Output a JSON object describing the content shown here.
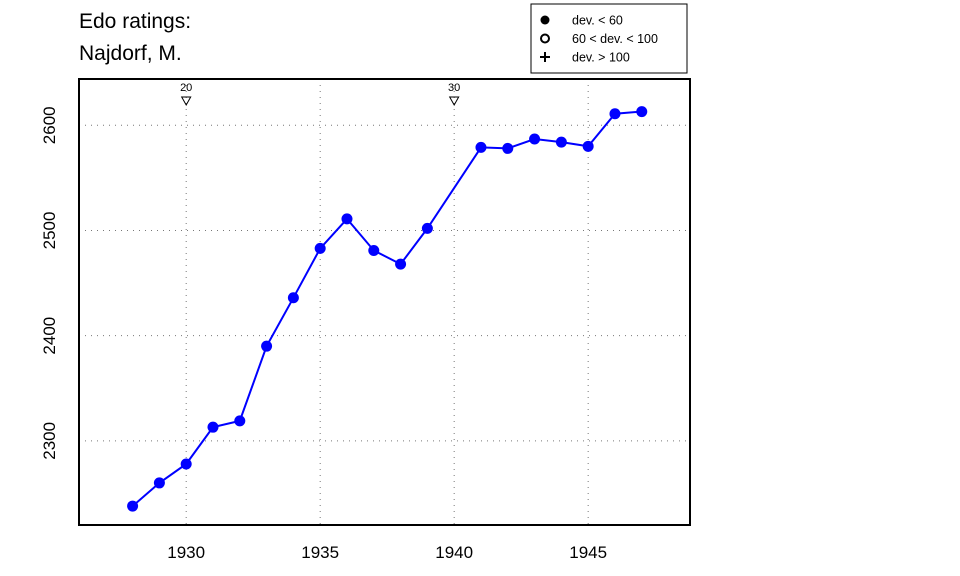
{
  "chart_data": {
    "type": "line",
    "title_lines": [
      "Edo ratings:",
      "Najdorf, M."
    ],
    "xlabel": "",
    "ylabel": "",
    "xlim": [
      1926,
      1948.8
    ],
    "ylim": [
      2220,
      2644
    ],
    "x_ticks": [
      1930,
      1935,
      1940,
      1945
    ],
    "x_tick_labels": [
      "1930",
      "1935",
      "1940",
      "1945"
    ],
    "y_ticks": [
      2300,
      2400,
      2500,
      2600
    ],
    "y_tick_labels": [
      "2300",
      "2400",
      "2500",
      "2600"
    ],
    "grid": true,
    "legend_position": "top-right",
    "legend": [
      {
        "label": "dev. < 60",
        "marker": "filled-circle"
      },
      {
        "label": "60 < dev. < 100",
        "marker": "open-circle"
      },
      {
        "label": "dev. > 100",
        "marker": "plus"
      }
    ],
    "series": [
      {
        "color": "#0000ff",
        "marker": "filled-circle",
        "x": [
          1928,
          1929,
          1930,
          1931,
          1932,
          1933,
          1934,
          1935,
          1936,
          1937,
          1938,
          1939,
          1941,
          1942,
          1943,
          1944,
          1945,
          1946,
          1947
        ],
        "y": [
          2238,
          2260,
          2278,
          2313,
          2319,
          2390,
          2436,
          2483,
          2511,
          2481,
          2468,
          2502,
          2579,
          2578,
          2587,
          2584,
          2580,
          2611,
          2613
        ]
      }
    ],
    "annotations": [
      {
        "x": 1930,
        "label": "20",
        "marker": "open-down-triangle"
      },
      {
        "x": 1940,
        "label": "30",
        "marker": "open-down-triangle"
      }
    ]
  }
}
